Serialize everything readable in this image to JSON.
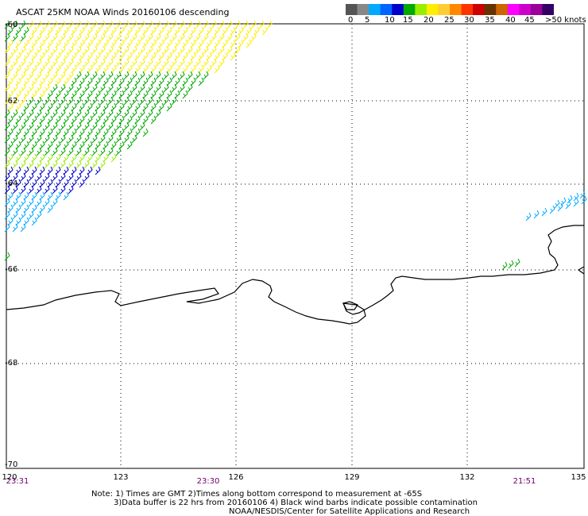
{
  "title": "ASCAT 25KM NOAA Winds 20160106 descending",
  "legend": {
    "colors": [
      "#555555",
      "#888888",
      "#00aaff",
      "#0066ff",
      "#0000cc",
      "#00aa00",
      "#99ee00",
      "#ffee00",
      "#ffcc33",
      "#ff8800",
      "#ff3300",
      "#cc0000",
      "#663300",
      "#cc6600",
      "#ff00ff",
      "#cc00cc",
      "#990099",
      "#330066"
    ],
    "labels": [
      "0",
      "5",
      "10",
      "15",
      "20",
      "25",
      "30",
      "35",
      "40",
      "45",
      ">50 knots"
    ]
  },
  "latitudes": [
    "-60",
    "-62",
    "-64",
    "-66",
    "-68",
    "-70"
  ],
  "longitudes": [
    "120",
    "123",
    "126",
    "129",
    "132",
    "135"
  ],
  "times": [
    "23:31",
    "23:30",
    "21:51"
  ],
  "notes": {
    "line1": "Note: 1) Times are GMT 2)Times along bottom correspond to measurement at -65S",
    "line2": "3)Data buffer is 22 hrs from 20160106 4) Black wind barbs indicate possible contamination",
    "line3": "NOAA/NESDIS/Center for Satellite Applications and Research"
  }
}
